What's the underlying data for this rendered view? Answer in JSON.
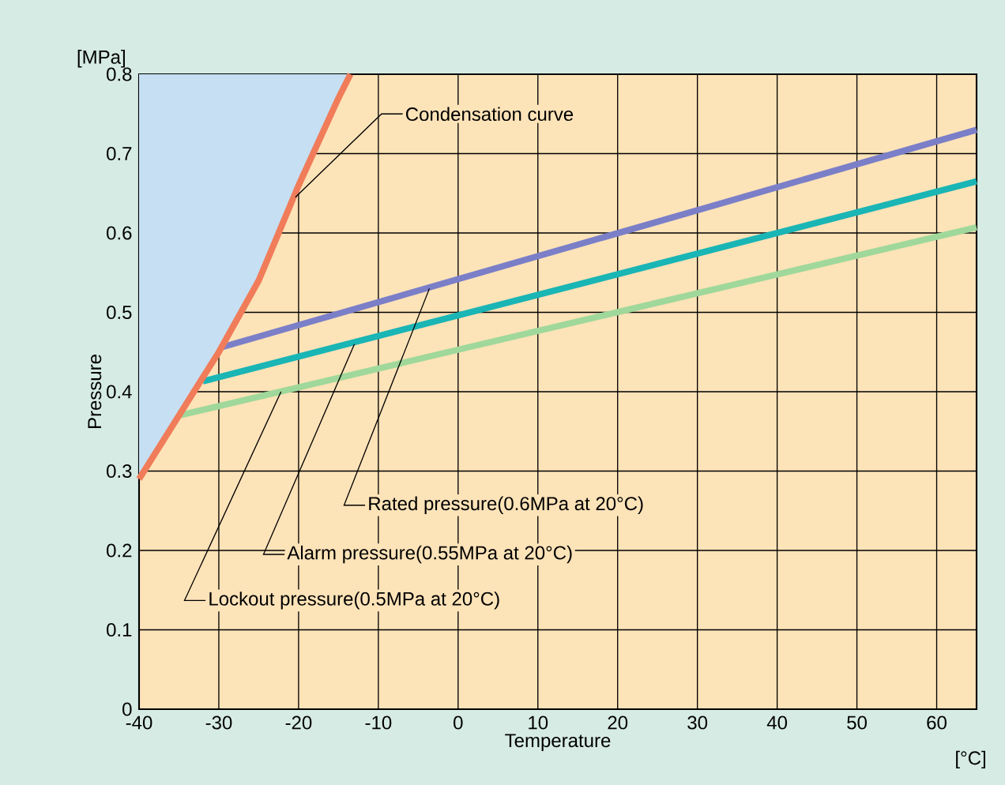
{
  "chart_data": {
    "type": "line",
    "xlabel": "Temperature",
    "ylabel": "Pressure",
    "xlim": [
      -40,
      65
    ],
    "ylim": [
      0,
      0.8
    ],
    "xticks": [
      -40,
      -30,
      -20,
      -10,
      0,
      10,
      20,
      30,
      40,
      50,
      60
    ],
    "yticks": [
      0,
      0.1,
      0.2,
      0.3,
      0.4,
      0.5,
      0.6,
      0.7,
      0.8
    ],
    "grid": true,
    "series": [
      {
        "color": "#7b7fc8",
        "x": [
          -30,
          65
        ],
        "values": [
          0.455,
          0.73
        ]
      },
      {
        "color": "#1ab5b5",
        "x": [
          -32,
          65
        ],
        "values": [
          0.413,
          0.665
        ]
      },
      {
        "color": "#9fd89a",
        "x": [
          -35,
          65
        ],
        "values": [
          0.37,
          0.607
        ]
      },
      {
        "color": "#f07c5a",
        "x": [
          -40,
          -35,
          -30,
          -25,
          -20,
          -15,
          -13.5
        ],
        "values": [
          0.29,
          0.37,
          0.45,
          0.54,
          0.66,
          0.77,
          0.8
        ],
        "lower": [
          0.29,
          0.37,
          0.45,
          0.54,
          0.66,
          0.77,
          0.8
        ],
        "upper": [
          0.8,
          0.8,
          0.8,
          0.8,
          0.8,
          0.8,
          0.8
        ]
      }
    ],
    "annotations": [
      "[MPa]",
      "[°C]",
      {
        "text": "Condensation curve",
        "x": -20.4,
        "y": 0.645
      },
      {
        "text": "Rated pressure(0.6MPa at 20°C)",
        "x": -3.6,
        "y": 0.53
      },
      {
        "text": "Alarm pressure(0.55MPa at 20°C)",
        "x": -13,
        "y": 0.46
      },
      {
        "text": "Lockout pressure(0.5MPa at 20°C)",
        "x": -22.2,
        "y": 0.4
      }
    ]
  }
}
